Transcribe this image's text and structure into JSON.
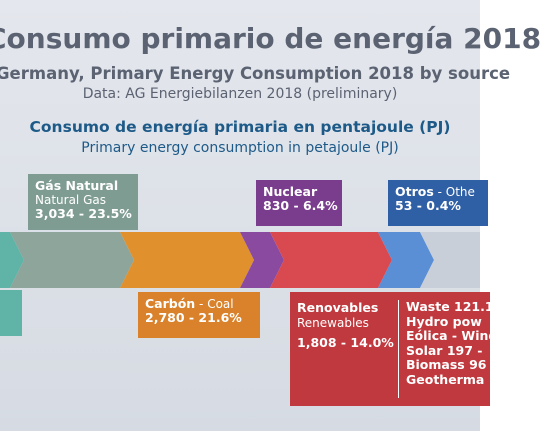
{
  "header": {
    "title": "Consumo primario de energía 2018",
    "subtitle": "Germany, Primary Energy Consumption 2018 by source",
    "source": "Data: AG Energiebilanzen 2018 (preliminary)",
    "heading_es": "Consumo de energía primaria en pentajoule (PJ)",
    "heading_en": "Primary energy consumption in petajoule (PJ)"
  },
  "segments": [
    {
      "name_es": "Gás Natural",
      "name_en": "Natural Gas",
      "value": "3,034 - 23.5%"
    },
    {
      "name_es": "Nuclear",
      "value": "830 - 6.4%"
    },
    {
      "name_es": "Otros",
      "name_en": "Othe",
      "value": "53 - 0.4%"
    },
    {
      "name_es": "Carbón",
      "name_en": "Coal",
      "value": "2,780 - 21.6%"
    },
    {
      "name_es": "Renovables",
      "name_en": "Renewables",
      "value": "1,808 - 14.0%",
      "breakdown": [
        "Waste 121.1",
        "Hydro pow",
        "Eólica - Wind",
        "Solar 197 - ",
        "Biomass 96",
        "Geotherma"
      ]
    }
  ]
}
